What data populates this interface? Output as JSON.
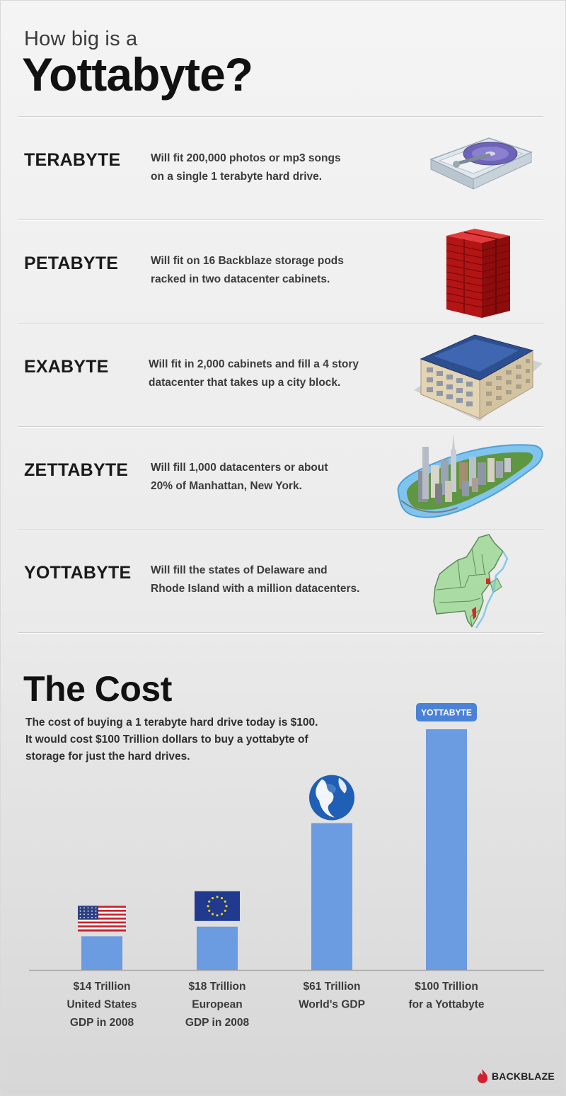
{
  "header": {
    "title_small": "How big is a",
    "title_big": "Yottabyte?"
  },
  "rows": [
    {
      "label": "TERABYTE",
      "desc_line1": "Will fit 200,000 photos or mp3 songs",
      "desc_line2": "on a single 1 terabyte hard drive.",
      "icon": "hard-drive-icon"
    },
    {
      "label": "PETABYTE",
      "desc_line1": "Will fit on 16 Backblaze storage pods",
      "desc_line2": "racked in two datacenter cabinets.",
      "icon": "storage-pods-icon"
    },
    {
      "label": "EXABYTE",
      "desc_line1": "Will fit in 2,000 cabinets and fill a 4 story",
      "desc_line2": "datacenter that takes up a city block.",
      "icon": "datacenter-building-icon"
    },
    {
      "label": "ZETTABYTE",
      "desc_line1": "Will fill 1,000 datacenters or about",
      "desc_line2": "20% of Manhattan, New York.",
      "icon": "manhattan-city-icon"
    },
    {
      "label": "YOTTABYTE",
      "desc_line1": "Will fill the states of Delaware and",
      "desc_line2": "Rhode Island with a million datacenters.",
      "icon": "northeast-states-map-icon"
    }
  ],
  "cost": {
    "title": "The Cost",
    "desc_line1": "The cost of buying a 1 terabyte hard drive today is $100.",
    "desc_line2": "It would cost $100 Trillion dollars to buy a yottabyte of",
    "desc_line3": "storage for just the hard drives."
  },
  "chart_data": {
    "type": "bar",
    "title": "",
    "xlabel": "",
    "ylabel": "",
    "grid": false,
    "ylim": [
      0,
      100
    ],
    "categories": [
      "United States GDP in 2008",
      "European GDP in 2008",
      "World's GDP",
      "for a Yottabyte"
    ],
    "values": [
      14,
      18,
      61,
      100
    ],
    "units": "Trillion",
    "bar_labels": [
      [
        "$14 Trillion",
        "United States",
        "GDP in 2008"
      ],
      [
        "$18 Trillion",
        "European",
        "GDP in 2008"
      ],
      [
        "$61 Trillion",
        "World's GDP"
      ],
      [
        "$100 Trillion",
        "for a Yottabyte"
      ]
    ],
    "bar_icons": [
      "us-flag-icon",
      "eu-flag-icon",
      "globe-icon",
      "yottabyte-badge"
    ],
    "badge_text": "YOTTABYTE",
    "bar_color": "#6b9be0",
    "badge_color": "#4a82d8"
  },
  "brand": {
    "name": "BACKBLAZE",
    "color": "#d2202f"
  }
}
